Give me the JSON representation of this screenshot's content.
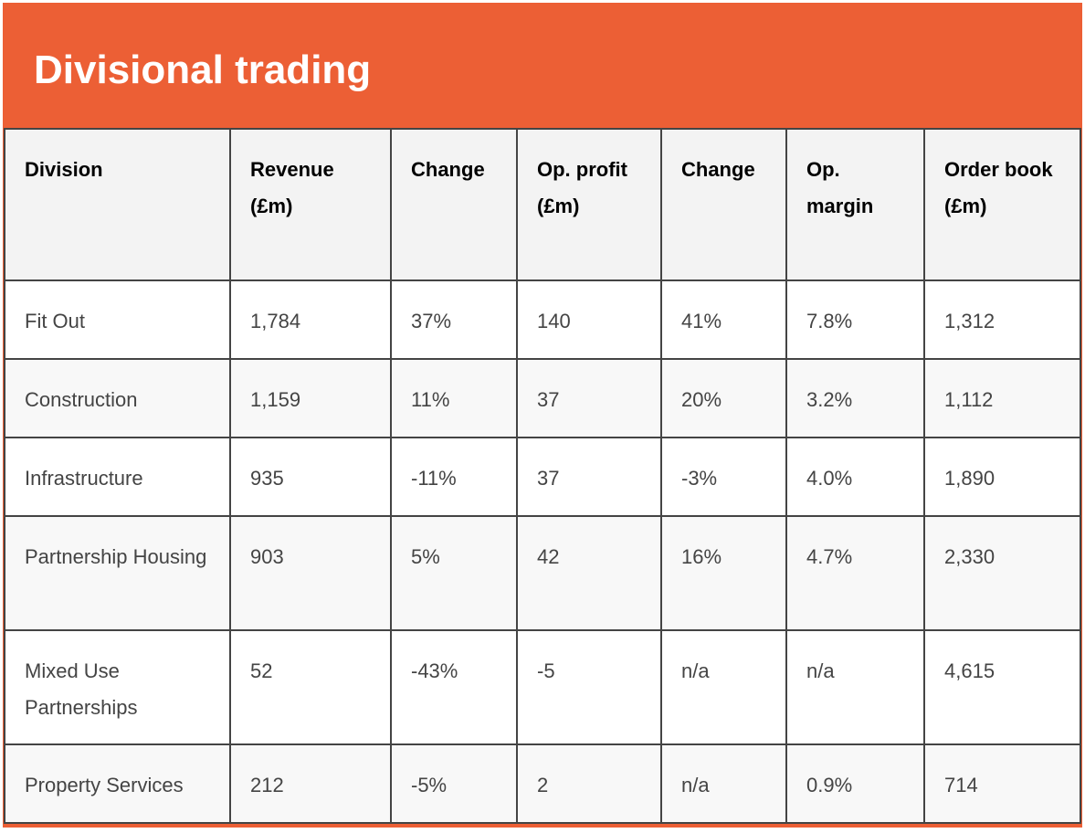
{
  "title": "Divisional trading",
  "colors": {
    "accent": "#ec5f35",
    "border": "#444444"
  },
  "columns": [
    "Division",
    "Revenue (£m)",
    "Change",
    "Op. profit (£m)",
    "Change",
    "Op. margin",
    "Order book (£m)"
  ],
  "rows": [
    [
      "Fit Out",
      "1,784",
      "37%",
      "140",
      "41%",
      "7.8%",
      "1,312"
    ],
    [
      "Construction",
      "1,159",
      "11%",
      "37",
      "20%",
      "3.2%",
      "1,112"
    ],
    [
      "Infrastructure",
      "935",
      "-11%",
      "37",
      "-3%",
      "4.0%",
      "1,890"
    ],
    [
      "Partnership Housing",
      "903",
      "5%",
      "42",
      "16%",
      "4.7%",
      "2,330"
    ],
    [
      "Mixed Use Partnerships",
      "52",
      "-43%",
      "-5",
      "n/a",
      "n/a",
      "4,615"
    ],
    [
      "Property Services",
      "212",
      "-5%",
      "2",
      "n/a",
      "0.9%",
      "714"
    ]
  ]
}
